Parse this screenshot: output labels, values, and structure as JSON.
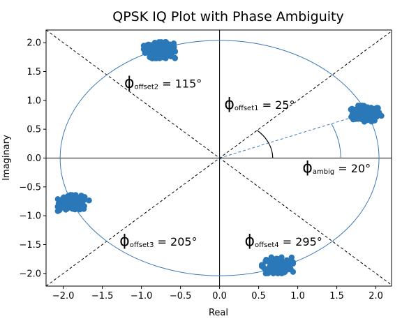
{
  "chart_data": {
    "type": "scatter",
    "title": "QPSK IQ Plot with Phase Ambiguity",
    "xlabel": "Real",
    "ylabel": "Imaginary",
    "xlim": [
      -2.22,
      2.2
    ],
    "ylim": [
      -2.22,
      2.22
    ],
    "xticks": [
      -2.0,
      -1.5,
      -1.0,
      -0.5,
      0.0,
      0.5,
      1.0,
      1.5,
      2.0
    ],
    "xtick_labels": [
      "−2.0",
      "−1.5",
      "−1.0",
      "−0.5",
      "0.0",
      "0.5",
      "1.0",
      "1.5",
      "2.0"
    ],
    "yticks": [
      -2.0,
      -1.5,
      -1.0,
      -0.5,
      0.0,
      0.5,
      1.0,
      1.5,
      2.0
    ],
    "ytick_labels": [
      "−2.0",
      "−1.5",
      "−1.0",
      "−0.5",
      "0.0",
      "0.5",
      "1.0",
      "1.5",
      "2.0"
    ],
    "grid": false,
    "marker_color": "#2b78b8",
    "line_color": "#3a78b6",
    "clusters": [
      {
        "cx": 1.88,
        "cy": 0.77,
        "spread": 0.09
      },
      {
        "cx": -0.77,
        "cy": 1.87,
        "spread": 0.09
      },
      {
        "cx": -1.87,
        "cy": -0.78,
        "spread": 0.09
      },
      {
        "cx": 0.74,
        "cy": -1.86,
        "spread": 0.09
      }
    ],
    "circle": {
      "radius": 2.04
    },
    "dashed_lines": [
      {
        "x": [
          -2.22,
          2.2
        ],
        "y": [
          2.22,
          -2.2
        ]
      },
      {
        "x": [
          -2.22,
          2.2
        ],
        "y": [
          -2.22,
          2.2
        ]
      }
    ],
    "ambiguity_line": {
      "x": [
        0,
        1.85
      ],
      "y": [
        0,
        0.77
      ]
    },
    "arcs": [
      {
        "radius": 0.68,
        "start_deg": 0,
        "end_deg": 45
      },
      {
        "radius": 1.55,
        "start_deg": 0,
        "end_deg": 22.5
      }
    ],
    "annotations": [
      {
        "phi": "ϕ",
        "sub": "offset2",
        "tail": " = 115°",
        "x": -1.22,
        "y": 1.22
      },
      {
        "phi": "ϕ",
        "sub": "offset1",
        "tail": " = 25°",
        "x": 0.06,
        "y": 0.85
      },
      {
        "phi": "ϕ",
        "sub": "ambig",
        "tail": " = 20°",
        "x": 1.06,
        "y": -0.25
      },
      {
        "phi": "ϕ",
        "sub": "offset3",
        "tail": " = 205°",
        "x": -1.28,
        "y": -1.52
      },
      {
        "phi": "ϕ",
        "sub": "offset4",
        "tail": " = 295°",
        "x": 0.32,
        "y": -1.52
      }
    ]
  }
}
